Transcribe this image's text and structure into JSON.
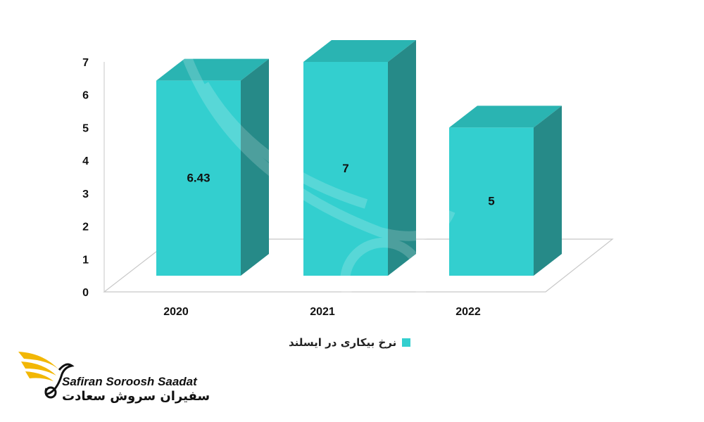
{
  "chart_data": {
    "type": "bar",
    "style": "3d-column",
    "categories": [
      "2020",
      "2021",
      "2022"
    ],
    "series": [
      {
        "name": "نرخ بیکاری در ایسلند",
        "values": [
          6.43,
          7,
          5
        ],
        "data_labels": [
          "6.43",
          "7",
          "5"
        ]
      }
    ],
    "ylim": [
      0,
      7
    ],
    "yticks": [
      "0",
      "1",
      "2",
      "3",
      "4",
      "5",
      "6",
      "7"
    ],
    "legend_position": "bottom",
    "grid": false
  },
  "colors": {
    "bar_front": "#33cfcf",
    "bar_top": "#2ab4b2",
    "bar_side": "#268a88"
  },
  "logo": {
    "latin": "Safiran Soroosh Saadat",
    "persian": "سفیران سروش سعادت"
  }
}
